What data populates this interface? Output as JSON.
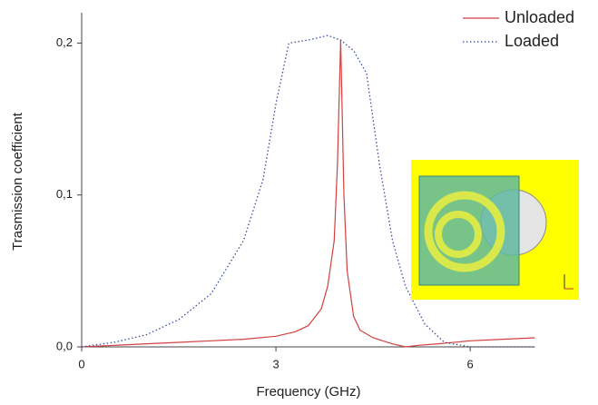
{
  "chart_data": {
    "type": "line",
    "x_label": "Frequency (GHz)",
    "y_label": "Trasmission coefficient",
    "xlim": [
      0,
      7
    ],
    "xticks": [
      0,
      3,
      6
    ],
    "ylim": [
      0,
      0.22
    ],
    "yticks": [
      {
        "value": 0,
        "label": "0,0"
      },
      {
        "value": 0.1,
        "label": "0,1"
      },
      {
        "value": 0.2,
        "label": "0,2"
      }
    ],
    "legend": "upper right",
    "series": [
      {
        "name": "Unloaded",
        "color": "#d0413f",
        "linestyle": "solid",
        "x": [
          0,
          0.5,
          1,
          1.5,
          2,
          2.5,
          3,
          3.3,
          3.5,
          3.7,
          3.8,
          3.9,
          3.95,
          4.0,
          4.05,
          4.1,
          4.2,
          4.3,
          4.5,
          4.8,
          5.0,
          5.2,
          5.5,
          6,
          6.5,
          7
        ],
        "values": [
          0,
          0.001,
          0.002,
          0.003,
          0.004,
          0.005,
          0.007,
          0.01,
          0.014,
          0.025,
          0.04,
          0.07,
          0.12,
          0.202,
          0.1,
          0.05,
          0.02,
          0.011,
          0.006,
          0.002,
          0,
          0.001,
          0.002,
          0.004,
          0.005,
          0.006
        ]
      },
      {
        "name": "Loaded",
        "color": "#3b4c9e",
        "linestyle": "dotted",
        "x": [
          0,
          0.5,
          1,
          1.5,
          2,
          2.5,
          2.8,
          3.0,
          3.2,
          3.5,
          3.8,
          4.0,
          4.2,
          4.4,
          4.6,
          4.8,
          5.0,
          5.3,
          5.6,
          6,
          7
        ],
        "values": [
          0,
          0.003,
          0.008,
          0.018,
          0.035,
          0.07,
          0.11,
          0.16,
          0.2,
          0.202,
          0.205,
          0.202,
          0.195,
          0.18,
          0.12,
          0.07,
          0.04,
          0.015,
          0.003,
          0,
          0
        ]
      }
    ]
  }
}
